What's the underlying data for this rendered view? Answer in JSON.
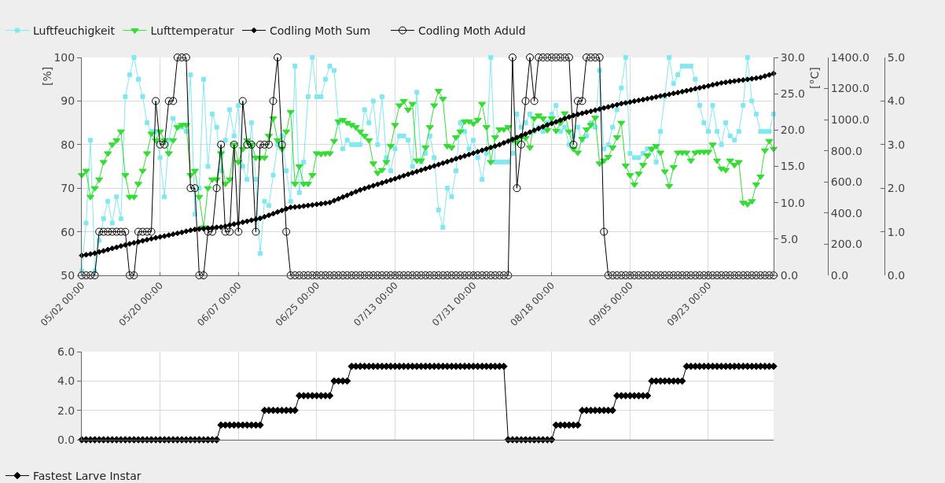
{
  "chart_data": [
    {
      "type": "line",
      "ylabel": "[%]",
      "y2label": "[°C]",
      "x": [
        "--05-02",
        "--05-03",
        "--05-04",
        "--05-05",
        "--05-06",
        "--05-07",
        "--05-08",
        "--05-09",
        "--05-10",
        "--05-11",
        "--05-12",
        "--05-13",
        "--05-14",
        "--05-15",
        "--05-16",
        "--05-17",
        "--05-18",
        "--05-19",
        "--05-20",
        "--05-21",
        "--05-22",
        "--05-23",
        "--05-24",
        "--05-25",
        "--05-26",
        "--05-27",
        "--05-28",
        "--05-29",
        "--05-30",
        "--05-31",
        "--06-01",
        "--06-02",
        "--06-03",
        "--06-04",
        "--06-05",
        "--06-06",
        "--06-07",
        "--06-08",
        "--06-09",
        "--06-10",
        "--06-11",
        "--06-12",
        "--06-13",
        "--06-14",
        "--06-15",
        "--06-16",
        "--06-17",
        "--06-18",
        "--06-19",
        "--06-20",
        "--06-21",
        "--06-22",
        "--06-23",
        "--06-24",
        "--06-25",
        "--06-26",
        "--06-27",
        "--06-28",
        "--06-29",
        "--06-30",
        "--07-01",
        "--07-02",
        "--07-03",
        "--07-04",
        "--07-05",
        "--07-06",
        "--07-07",
        "--07-08",
        "--07-09",
        "--07-10",
        "--07-11",
        "--07-12",
        "--07-13",
        "--07-14",
        "--07-15",
        "--07-16",
        "--07-17",
        "--07-18",
        "--07-19",
        "--07-20",
        "--07-21",
        "--07-22",
        "--07-23",
        "--07-24",
        "--07-25",
        "--07-26",
        "--07-27",
        "--07-28",
        "--07-29",
        "--07-30",
        "--07-31",
        "--08-01",
        "--08-02",
        "--08-03",
        "--08-04",
        "--08-05",
        "--08-06",
        "--08-07",
        "--08-08",
        "--08-09",
        "--08-10",
        "--08-11",
        "--08-12",
        "--08-13",
        "--08-14",
        "--08-15",
        "--08-16",
        "--08-17",
        "--08-18",
        "--08-19",
        "--08-20",
        "--08-21",
        "--08-22",
        "--08-23",
        "--08-24",
        "--08-25",
        "--08-26",
        "--08-27",
        "--08-28",
        "--08-29",
        "--08-30",
        "--08-31",
        "--09-01",
        "--09-02",
        "--09-03",
        "--09-04",
        "--09-05",
        "--09-06",
        "--09-07",
        "--09-08",
        "--09-09",
        "--09-10",
        "--09-11",
        "--09-12",
        "--09-13",
        "--09-14",
        "--09-15",
        "--09-16",
        "--09-17",
        "--09-18",
        "--09-19",
        "--09-20",
        "--09-21",
        "--09-22",
        "--09-23",
        "--09-24",
        "--09-25",
        "--09-26",
        "--09-27",
        "--09-28",
        "--09-29",
        "--09-30",
        "--10-01",
        "--10-02",
        "--10-03",
        "--10-04",
        "--10-05",
        "--10-06",
        "--10-07",
        "--10-08"
      ],
      "xlim": [
        "--05-02",
        "--10-08"
      ],
      "xticks": [
        {
          "value": "--05-02",
          "label": "05/02 00:00"
        },
        {
          "value": "--05-20",
          "label": "05/20 00:00"
        },
        {
          "value": "--06-07",
          "label": "06/07 00:00"
        },
        {
          "value": "--06-25",
          "label": "06/25 00:00"
        },
        {
          "value": "--07-13",
          "label": "07/13 00:00"
        },
        {
          "value": "--07-31",
          "label": "07/31 00:00"
        },
        {
          "value": "--08-18",
          "label": "08/18 00:00"
        },
        {
          "value": "--09-05",
          "label": "09/05 00:00"
        },
        {
          "value": "--09-23",
          "label": "09/23 00:00"
        }
      ],
      "ylim": [
        50,
        100
      ],
      "yticks": [
        50,
        60,
        70,
        80,
        90,
        100
      ],
      "y2lim": [
        0,
        30
      ],
      "y2ticks": [
        {
          "value": 0,
          "label": "0.0"
        },
        {
          "value": 5,
          "label": "5.0"
        },
        {
          "value": 10,
          "label": "10.0"
        },
        {
          "value": 15,
          "label": "15.0"
        },
        {
          "value": 20,
          "label": "20.0"
        },
        {
          "value": 25,
          "label": "25.0"
        },
        {
          "value": 30,
          "label": "30.0"
        }
      ],
      "y3lim": [
        0,
        1400
      ],
      "y3ticks": [
        {
          "value": 0,
          "label": "0.0"
        },
        {
          "value": 200,
          "label": "200.0"
        },
        {
          "value": 400,
          "label": "400.0"
        },
        {
          "value": 600,
          "label": "600.0"
        },
        {
          "value": 800,
          "label": "800.0"
        },
        {
          "value": 1000,
          "label": "1000.0"
        },
        {
          "value": 1200,
          "label": "1200.0"
        },
        {
          "value": 1400,
          "label": "1400.0"
        }
      ],
      "grid": true,
      "legend": "top left",
      "series": [
        {
          "name": "Luftfeuchigkeit",
          "color": "#80e8f0",
          "marker": "square",
          "values": [
            51,
            62,
            81,
            51,
            58,
            63,
            67,
            62,
            68,
            63,
            91,
            96,
            100,
            95,
            91,
            85,
            83,
            83,
            77,
            68,
            81,
            86,
            84,
            84,
            83,
            96,
            64,
            70,
            95,
            75,
            87,
            84,
            74,
            81,
            88,
            82,
            89,
            75,
            72,
            85,
            72,
            55,
            67,
            66,
            73,
            80,
            82,
            74,
            67,
            98,
            69,
            76,
            91,
            100,
            91,
            91,
            95,
            98,
            97,
            85,
            79,
            81,
            80,
            80,
            80,
            88,
            85,
            90,
            80,
            91,
            77,
            74,
            79,
            82,
            82,
            81,
            75,
            92,
            76,
            78,
            82,
            77,
            65,
            61,
            70,
            68,
            74,
            85,
            83,
            79,
            81,
            77,
            72,
            78,
            100,
            76,
            76,
            76,
            76,
            78,
            87,
            84,
            85,
            87,
            83,
            84,
            83,
            85,
            87,
            89,
            83,
            84,
            80,
            82,
            84,
            81,
            82,
            85,
            84,
            97,
            79,
            80,
            84,
            88,
            93,
            100,
            78,
            77,
            77,
            78,
            79,
            79,
            76,
            83,
            91,
            100,
            94,
            96,
            98,
            98,
            98,
            95,
            89,
            85,
            83,
            89,
            83,
            80,
            85,
            82,
            81,
            83,
            89,
            100,
            90,
            87,
            83,
            83,
            83,
            87
          ]
        },
        {
          "name": "Lufttemperatur",
          "color": "#33dd33",
          "marker": "triangle",
          "axis": "y2",
          "values": [
            13.8,
            14.4,
            10.8,
            12.0,
            13.2,
            15.6,
            16.8,
            18.0,
            18.6,
            19.8,
            13.8,
            10.8,
            10.8,
            12.6,
            14.4,
            16.8,
            19.5,
            18.6,
            19.8,
            18.6,
            16.8,
            18.6,
            20.4,
            20.7,
            20.7,
            13.8,
            14.4,
            10.8,
            6.6,
            12.0,
            13.2,
            13.2,
            16.8,
            12.6,
            13.2,
            18.0,
            15.6,
            17.4,
            18.6,
            18.0,
            16.2,
            16.2,
            16.2,
            19.2,
            21.6,
            18.6,
            17.4,
            19.8,
            22.5,
            12.6,
            15.0,
            12.6,
            12.6,
            13.8,
            16.8,
            16.7,
            16.8,
            16.8,
            18.5,
            21.2,
            21.4,
            21.0,
            20.7,
            20.4,
            19.8,
            19.2,
            18.6,
            15.4,
            14.1,
            14.5,
            15.6,
            17.8,
            20.7,
            23.4,
            24.0,
            22.8,
            23.6,
            15.8,
            15.8,
            17.6,
            20.4,
            23.4,
            25.4,
            24.3,
            17.8,
            17.6,
            19.0,
            19.8,
            21.2,
            21.2,
            20.9,
            21.4,
            23.6,
            20.4,
            15.6,
            19.0,
            20.1,
            20.1,
            20.4,
            18.6,
            18.3,
            19.0,
            18.9,
            17.6,
            21.6,
            22.0,
            21.6,
            20.0,
            21.6,
            19.9,
            21.0,
            22.3,
            19.8,
            17.4,
            16.9,
            18.8,
            20.1,
            20.7,
            21.7,
            15.4,
            15.8,
            16.3,
            17.6,
            19.0,
            21.0,
            15.1,
            13.8,
            12.5,
            14.0,
            15.2,
            16.5,
            17.4,
            17.8,
            16.9,
            14.3,
            12.3,
            14.9,
            16.9,
            16.9,
            16.9,
            15.8,
            16.9,
            17.0,
            17.0,
            17.0,
            18.0,
            15.8,
            14.7,
            14.5,
            15.8,
            15.2,
            15.6,
            10.0,
            9.8,
            10.2,
            12.5,
            13.6,
            17.2,
            18.5,
            17.4
          ]
        },
        {
          "name": "Codling Moth Sum",
          "color": "#000000",
          "marker": "diamond",
          "axis": "y3",
          "values": [
            127,
            132,
            137,
            142,
            150,
            157,
            165,
            173,
            180,
            188,
            195,
            202,
            209,
            215,
            222,
            229,
            235,
            241,
            247,
            252,
            258,
            264,
            270,
            276,
            283,
            289,
            295,
            298,
            300,
            303,
            305,
            308,
            310,
            316,
            323,
            329,
            335,
            341,
            347,
            354,
            360,
            366,
            376,
            386,
            396,
            407,
            417,
            427,
            437,
            439,
            441,
            445,
            449,
            452,
            456,
            460,
            464,
            468,
            480,
            491,
            503,
            514,
            526,
            537,
            549,
            558,
            567,
            576,
            585,
            594,
            603,
            612,
            621,
            631,
            640,
            649,
            658,
            667,
            676,
            685,
            694,
            703,
            712,
            721,
            730,
            739,
            749,
            758,
            767,
            776,
            785,
            794,
            803,
            812,
            821,
            830,
            839,
            851,
            862,
            874,
            885,
            897,
            908,
            920,
            932,
            943,
            955,
            966,
            976,
            986,
            997,
            1007,
            1017,
            1027,
            1034,
            1041,
            1048,
            1054,
            1061,
            1068,
            1075,
            1082,
            1089,
            1096,
            1103,
            1108,
            1113,
            1119,
            1124,
            1129,
            1135,
            1140,
            1146,
            1152,
            1157,
            1163,
            1169,
            1174,
            1180,
            1186,
            1192,
            1199,
            1205,
            1211,
            1217,
            1224,
            1230,
            1236,
            1240,
            1244,
            1248,
            1252,
            1255,
            1259,
            1263,
            1267,
            1271,
            1280,
            1288,
            1297
          ]
        }
      ]
    },
    {
      "type": "line",
      "x": [
        "--05-02",
        "--05-03",
        "--05-04",
        "--05-05",
        "--05-06",
        "--05-07",
        "--05-08",
        "--05-09",
        "--05-10",
        "--05-11",
        "--05-12",
        "--05-13",
        "--05-14",
        "--05-15",
        "--05-16",
        "--05-17",
        "--05-18",
        "--05-19",
        "--05-20",
        "--05-21",
        "--05-22",
        "--05-23",
        "--05-24",
        "--05-25",
        "--05-26",
        "--05-27",
        "--05-28",
        "--05-29",
        "--05-30",
        "--05-31",
        "--06-01",
        "--06-02",
        "--06-03",
        "--06-04",
        "--06-05",
        "--06-06",
        "--06-07",
        "--06-08",
        "--06-09",
        "--06-10",
        "--06-11",
        "--06-12",
        "--06-13",
        "--06-14",
        "--06-15",
        "--06-16",
        "--06-17",
        "--06-18",
        "--06-19",
        "--06-20",
        "--06-21",
        "--06-22",
        "--06-23",
        "--06-24",
        "--06-25",
        "--06-26",
        "--06-27",
        "--06-28",
        "--06-29",
        "--06-30",
        "--07-01",
        "--07-02",
        "--07-03",
        "--07-04",
        "--07-05",
        "--07-06",
        "--07-07",
        "--07-08",
        "--07-09",
        "--07-10",
        "--07-11",
        "--07-12",
        "--07-13",
        "--07-14",
        "--07-15",
        "--07-16",
        "--07-17",
        "--07-18",
        "--07-19",
        "--07-20",
        "--07-21",
        "--07-22",
        "--07-23",
        "--07-24",
        "--07-25",
        "--07-26",
        "--07-27",
        "--07-28",
        "--07-29",
        "--07-30",
        "--07-31",
        "--08-01",
        "--08-02",
        "--08-03",
        "--08-04",
        "--08-05",
        "--08-06",
        "--08-07",
        "--08-08",
        "--08-09",
        "--08-10",
        "--08-11",
        "--08-12",
        "--08-13",
        "--08-14",
        "--08-15",
        "--08-16",
        "--08-17",
        "--08-18",
        "--08-19",
        "--08-20",
        "--08-21",
        "--08-22",
        "--08-23",
        "--08-24",
        "--08-25",
        "--08-26",
        "--08-27",
        "--08-28",
        "--08-29",
        "--08-30",
        "--08-31",
        "--09-01",
        "--09-02",
        "--09-03",
        "--09-04",
        "--09-05",
        "--09-06",
        "--09-07",
        "--09-08",
        "--09-09",
        "--09-10",
        "--09-11",
        "--09-12",
        "--09-13",
        "--09-14",
        "--09-15",
        "--09-16",
        "--09-17",
        "--09-18",
        "--09-19",
        "--09-20",
        "--09-21",
        "--09-22",
        "--09-23",
        "--09-24",
        "--09-25",
        "--09-26",
        "--09-27",
        "--09-28",
        "--09-29",
        "--09-30",
        "--10-01",
        "--10-02",
        "--10-03",
        "--10-04",
        "--10-05",
        "--10-06",
        "--10-07",
        "--10-08"
      ],
      "xlim": [
        "--05-02",
        "--10-08"
      ],
      "xticks": [
        {
          "value": "--05-02",
          "label": null
        },
        {
          "value": "--05-20",
          "label": null
        },
        {
          "value": "--06-07",
          "label": null
        },
        {
          "value": "--06-25",
          "label": null
        },
        {
          "value": "--07-13",
          "label": null
        },
        {
          "value": "--07-31",
          "label": null
        },
        {
          "value": "--08-18",
          "label": null
        },
        {
          "value": "--09-05",
          "label": null
        },
        {
          "value": "--09-23",
          "label": null
        }
      ],
      "ylim": [
        0,
        5
      ],
      "yticks": [
        {
          "value": 0,
          "label": "0.0"
        },
        {
          "value": 1,
          "label": "1.0"
        },
        {
          "value": 2,
          "label": "2.0"
        },
        {
          "value": 3,
          "label": "3.0"
        },
        {
          "value": 4,
          "label": "4.0"
        },
        {
          "value": 5,
          "label": "5.0"
        }
      ],
      "tick_labels": "y",
      "legend": "top left",
      "series": [
        {
          "name": "Codling Moth Aduld",
          "color": "#000000",
          "marker": "circle",
          "values": [
            0,
            0,
            0,
            0,
            1,
            1,
            1,
            1,
            1,
            1,
            1,
            0,
            0,
            1,
            1,
            1,
            1,
            4,
            3,
            3,
            4,
            4,
            5,
            5,
            5,
            2,
            2,
            0,
            0,
            1,
            1,
            2,
            3,
            1,
            1,
            3,
            1,
            4,
            3,
            3,
            1,
            3,
            3,
            3,
            4,
            5,
            3,
            1,
            0,
            0,
            0,
            0,
            0,
            0,
            0,
            0,
            0,
            0,
            0,
            0,
            0,
            0,
            0,
            0,
            0,
            0,
            0,
            0,
            0,
            0,
            0,
            0,
            0,
            0,
            0,
            0,
            0,
            0,
            0,
            0,
            0,
            0,
            0,
            0,
            0,
            0,
            0,
            0,
            0,
            0,
            0,
            0,
            0,
            0,
            0,
            0,
            0,
            0,
            0,
            5,
            2,
            3,
            4,
            5,
            4,
            5,
            5,
            5,
            5,
            5,
            5,
            5,
            5,
            3,
            4,
            4,
            5,
            5,
            5,
            5,
            1,
            0,
            0,
            0,
            0,
            0,
            0,
            0,
            0,
            0,
            0,
            0,
            0,
            0,
            0,
            0,
            0,
            0,
            0,
            0,
            0,
            0,
            0,
            0,
            0,
            0,
            0,
            0,
            0,
            0,
            0,
            0,
            0,
            0,
            0,
            0,
            0,
            0,
            0,
            0
          ]
        }
      ]
    },
    {
      "type": "line",
      "x": [
        "--05-02",
        "--05-03",
        "--05-04",
        "--05-05",
        "--05-06",
        "--05-07",
        "--05-08",
        "--05-09",
        "--05-10",
        "--05-11",
        "--05-12",
        "--05-13",
        "--05-14",
        "--05-15",
        "--05-16",
        "--05-17",
        "--05-18",
        "--05-19",
        "--05-20",
        "--05-21",
        "--05-22",
        "--05-23",
        "--05-24",
        "--05-25",
        "--05-26",
        "--05-27",
        "--05-28",
        "--05-29",
        "--05-30",
        "--05-31",
        "--06-01",
        "--06-02",
        "--06-03",
        "--06-04",
        "--06-05",
        "--06-06",
        "--06-07",
        "--06-08",
        "--06-09",
        "--06-10",
        "--06-11",
        "--06-12",
        "--06-13",
        "--06-14",
        "--06-15",
        "--06-16",
        "--06-17",
        "--06-18",
        "--06-19",
        "--06-20",
        "--06-21",
        "--06-22",
        "--06-23",
        "--06-24",
        "--06-25",
        "--06-26",
        "--06-27",
        "--06-28",
        "--06-29",
        "--06-30",
        "--07-01",
        "--07-02",
        "--07-03",
        "--07-04",
        "--07-05",
        "--07-06",
        "--07-07",
        "--07-08",
        "--07-09",
        "--07-10",
        "--07-11",
        "--07-12",
        "--07-13",
        "--07-14",
        "--07-15",
        "--07-16",
        "--07-17",
        "--07-18",
        "--07-19",
        "--07-20",
        "--07-21",
        "--07-22",
        "--07-23",
        "--07-24",
        "--07-25",
        "--07-26",
        "--07-27",
        "--07-28",
        "--07-29",
        "--07-30",
        "--07-31",
        "--08-01",
        "--08-02",
        "--08-03",
        "--08-04",
        "--08-05",
        "--08-06",
        "--08-07",
        "--08-08",
        "--08-09",
        "--08-10",
        "--08-11",
        "--08-12",
        "--08-13",
        "--08-14",
        "--08-15",
        "--08-16",
        "--08-17",
        "--08-18",
        "--08-19",
        "--08-20",
        "--08-21",
        "--08-22",
        "--08-23",
        "--08-24",
        "--08-25",
        "--08-26",
        "--08-27",
        "--08-28",
        "--08-29",
        "--08-30",
        "--08-31",
        "--09-01",
        "--09-02",
        "--09-03",
        "--09-04",
        "--09-05",
        "--09-06",
        "--09-07",
        "--09-08",
        "--09-09",
        "--09-10",
        "--09-11",
        "--09-12",
        "--09-13",
        "--09-14",
        "--09-15",
        "--09-16",
        "--09-17",
        "--09-18",
        "--09-19",
        "--09-20",
        "--09-21",
        "--09-22",
        "--09-23",
        "--09-24",
        "--09-25",
        "--09-26",
        "--09-27",
        "--09-28",
        "--09-29",
        "--09-30",
        "--10-01",
        "--10-02",
        "--10-03",
        "--10-04",
        "--10-05",
        "--10-06",
        "--10-07",
        "--10-08"
      ],
      "xlim": [
        "--05-02",
        "--10-08"
      ],
      "xticks": [
        {
          "value": "--05-02",
          "label": null
        },
        {
          "value": "--05-20",
          "label": null
        },
        {
          "value": "--06-07",
          "label": null
        },
        {
          "value": "--06-25",
          "label": null
        },
        {
          "value": "--07-13",
          "label": null
        },
        {
          "value": "--07-31",
          "label": null
        },
        {
          "value": "--08-18",
          "label": null
        },
        {
          "value": "--09-05",
          "label": null
        },
        {
          "value": "--09-23",
          "label": null
        }
      ],
      "ylim": [
        0,
        6
      ],
      "yticks": [
        {
          "value": 0,
          "label": "0.0"
        },
        {
          "value": 2,
          "label": "2.0"
        },
        {
          "value": 4,
          "label": "4.0"
        },
        {
          "value": 6,
          "label": "6.0"
        }
      ],
      "tick_labels": "y",
      "grid": true,
      "legend": "bottom left",
      "series": [
        {
          "name": "Fastest Larve Instar",
          "color": "#000000",
          "marker": "diamond",
          "values": [
            0,
            0,
            0,
            0,
            0,
            0,
            0,
            0,
            0,
            0,
            0,
            0,
            0,
            0,
            0,
            0,
            0,
            0,
            0,
            0,
            0,
            0,
            0,
            0,
            0,
            0,
            0,
            0,
            0,
            0,
            0,
            0,
            1,
            1,
            1,
            1,
            1,
            1,
            1,
            1,
            1,
            1,
            2,
            2,
            2,
            2,
            2,
            2,
            2,
            2,
            3,
            3,
            3,
            3,
            3,
            3,
            3,
            3,
            4,
            4,
            4,
            4,
            5,
            5,
            5,
            5,
            5,
            5,
            5,
            5,
            5,
            5,
            5,
            5,
            5,
            5,
            5,
            5,
            5,
            5,
            5,
            5,
            5,
            5,
            5,
            5,
            5,
            5,
            5,
            5,
            5,
            5,
            5,
            5,
            5,
            5,
            5,
            5,
            0,
            0,
            0,
            0,
            0,
            0,
            0,
            0,
            0,
            0,
            0,
            1,
            1,
            1,
            1,
            1,
            1,
            2,
            2,
            2,
            2,
            2,
            2,
            2,
            2,
            3,
            3,
            3,
            3,
            3,
            3,
            3,
            3,
            4,
            4,
            4,
            4,
            4,
            4,
            4,
            4,
            5,
            5,
            5,
            5,
            5,
            5,
            5,
            5,
            5,
            5,
            5,
            5,
            5,
            5,
            5,
            5,
            5,
            5,
            5,
            5,
            5
          ]
        }
      ]
    }
  ]
}
